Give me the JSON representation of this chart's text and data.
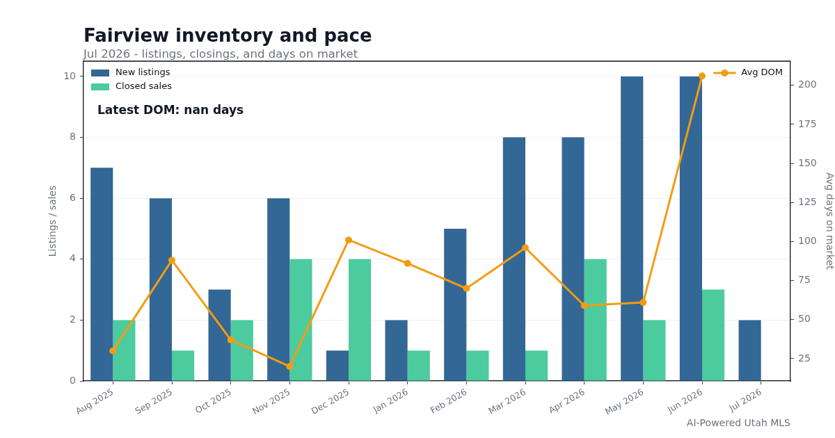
{
  "chart_data": {
    "type": "bar",
    "title": "Fairview inventory and pace",
    "subtitle": "Jul 2026 - listings, closings, and days on market",
    "ylabel": "Listings / sales",
    "y2label": "Avg days on market",
    "categories": [
      "Aug 2025",
      "Sep 2025",
      "Oct 2025",
      "Nov 2025",
      "Dec 2025",
      "Jan 2026",
      "Feb 2026",
      "Mar 2026",
      "Apr 2026",
      "May 2026",
      "Jun 2026",
      "Jul 2026"
    ],
    "series": [
      {
        "name": "New listings",
        "color": "#336795",
        "values": [
          7,
          6,
          3,
          6,
          1,
          2,
          5,
          8,
          8,
          10,
          10,
          2
        ]
      },
      {
        "name": "Closed sales",
        "color": "#4ccb9f",
        "values": [
          2,
          1,
          2,
          4,
          4,
          1,
          1,
          1,
          4,
          2,
          3,
          null
        ]
      },
      {
        "name": "Avg DOM",
        "type": "line",
        "axis": "y2",
        "color": "#f39c12",
        "values": [
          30,
          88,
          37,
          20,
          101,
          86,
          70,
          96,
          59,
          61,
          206,
          null
        ]
      }
    ],
    "ylim": [
      0,
      10.5
    ],
    "yticks": [
      0,
      2,
      4,
      6,
      8,
      10
    ],
    "y2lim": [
      10.7,
      215.5
    ],
    "y2ticks": [
      25,
      50,
      75,
      100,
      125,
      150,
      175,
      200
    ],
    "grid": "y",
    "legend": "top left",
    "marker": "circle",
    "line_style": "solid",
    "annotations": [
      "Latest DOM: nan days",
      "AI-Powered Utah MLS"
    ]
  }
}
